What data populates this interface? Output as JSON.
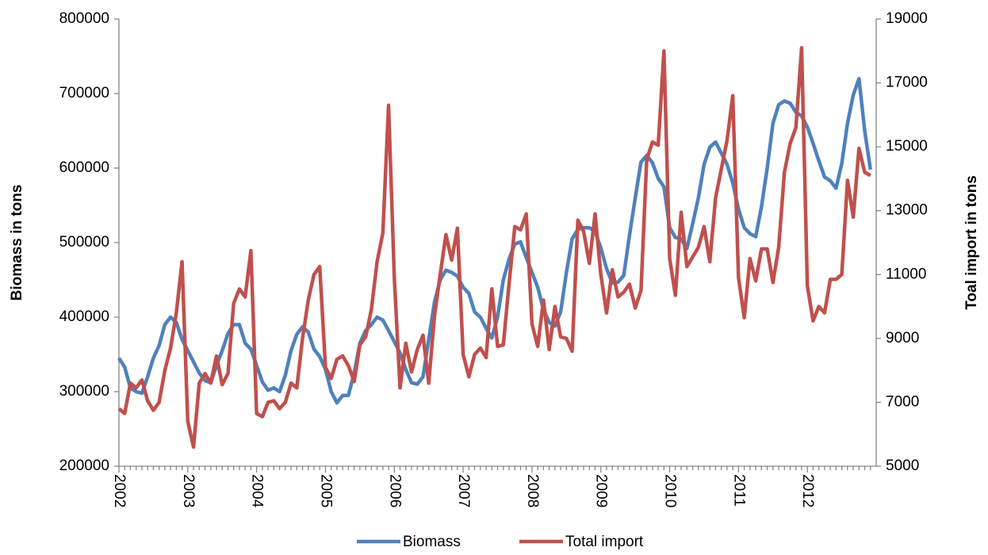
{
  "chart_data": {
    "type": "line",
    "y_label": "Biomass in tons",
    "y2_label": "Toal import in tons",
    "categories": [
      "2002",
      null,
      null,
      null,
      null,
      null,
      null,
      null,
      null,
      null,
      null,
      null,
      "2003",
      null,
      null,
      null,
      null,
      null,
      null,
      null,
      null,
      null,
      null,
      null,
      "2004",
      null,
      null,
      null,
      null,
      null,
      null,
      null,
      null,
      null,
      null,
      null,
      "2005",
      null,
      null,
      null,
      null,
      null,
      null,
      null,
      null,
      null,
      null,
      null,
      "2006",
      null,
      null,
      null,
      null,
      null,
      null,
      null,
      null,
      null,
      null,
      null,
      "2007",
      null,
      null,
      null,
      null,
      null,
      null,
      null,
      null,
      null,
      null,
      null,
      "2008",
      null,
      null,
      null,
      null,
      null,
      null,
      null,
      null,
      null,
      null,
      null,
      "2009",
      null,
      null,
      null,
      null,
      null,
      null,
      null,
      null,
      null,
      null,
      null,
      "2010",
      null,
      null,
      null,
      null,
      null,
      null,
      null,
      null,
      null,
      null,
      null,
      "2011",
      null,
      null,
      null,
      null,
      null,
      null,
      null,
      null,
      null,
      null,
      null,
      "2012",
      null,
      null,
      null,
      null,
      null,
      null,
      null,
      null,
      null,
      null,
      null
    ],
    "series": [
      {
        "name": "Biomass",
        "color": "#4f81bd",
        "axis": "y",
        "values": [
          345000,
          333000,
          305000,
          300000,
          298000,
          320000,
          345000,
          362000,
          390000,
          400000,
          393000,
          370000,
          355000,
          340000,
          325000,
          315000,
          312000,
          335000,
          355000,
          378000,
          390000,
          390000,
          365000,
          357000,
          335000,
          313000,
          302000,
          305000,
          300000,
          322000,
          355000,
          377000,
          387000,
          380000,
          357000,
          347000,
          330000,
          300000,
          285000,
          295000,
          295000,
          325000,
          365000,
          382000,
          390000,
          400000,
          396000,
          382000,
          367000,
          352000,
          330000,
          312000,
          310000,
          320000,
          370000,
          420000,
          450000,
          463000,
          460000,
          455000,
          440000,
          432000,
          407000,
          400000,
          385000,
          372000,
          400000,
          450000,
          478000,
          498000,
          501000,
          480000,
          460000,
          440000,
          410000,
          393000,
          388000,
          407000,
          460000,
          505000,
          518000,
          520000,
          520000,
          515000,
          493000,
          465000,
          446000,
          447000,
          456000,
          510000,
          560000,
          608000,
          617000,
          607000,
          586000,
          575000,
          520000,
          507000,
          505000,
          492000,
          525000,
          560000,
          605000,
          628000,
          635000,
          620000,
          605000,
          580000,
          545000,
          520000,
          512000,
          508000,
          548000,
          600000,
          660000,
          685000,
          690000,
          687000,
          675000,
          670000,
          655000,
          633000,
          610000,
          588000,
          583000,
          573000,
          606000,
          660000,
          698000,
          720000,
          650000,
          598000
        ]
      },
      {
        "name": "Total import",
        "color": "#c0504d",
        "axis": "y2",
        "values": [
          6800,
          6650,
          7600,
          7450,
          7700,
          7050,
          6750,
          7000,
          8000,
          8700,
          9800,
          11400,
          6400,
          5600,
          7600,
          7900,
          7600,
          8450,
          7550,
          7900,
          10100,
          10550,
          10300,
          11750,
          6650,
          6550,
          7000,
          7050,
          6800,
          7000,
          7600,
          7450,
          9000,
          10200,
          11000,
          11250,
          8100,
          7750,
          8350,
          8450,
          8150,
          7650,
          8800,
          9050,
          9900,
          11400,
          12300,
          16300,
          10900,
          7450,
          8850,
          7950,
          8650,
          9100,
          7600,
          9700,
          11000,
          12250,
          11450,
          12450,
          8500,
          7800,
          8500,
          8700,
          8400,
          10550,
          8750,
          8800,
          10700,
          12500,
          12400,
          12900,
          9450,
          8750,
          10200,
          8650,
          10000,
          9050,
          9000,
          8600,
          12700,
          12350,
          11350,
          12900,
          11000,
          9800,
          11150,
          10300,
          10450,
          10700,
          9950,
          10500,
          14600,
          15150,
          15050,
          18000,
          11500,
          10350,
          12950,
          11250,
          11550,
          11850,
          12500,
          11400,
          13400,
          14300,
          15200,
          16600,
          10900,
          9650,
          11500,
          10800,
          11800,
          11800,
          10750,
          11850,
          14200,
          15100,
          15600,
          18100,
          10650,
          9550,
          10000,
          9800,
          10850,
          10850,
          11000,
          13950,
          12800,
          14950,
          14200,
          14100
        ]
      }
    ],
    "ylim": [
      200000,
      800000
    ],
    "yticks": [
      200000,
      300000,
      400000,
      500000,
      600000,
      700000,
      800000
    ],
    "y2lim": [
      5000,
      19000
    ],
    "y2ticks": [
      5000,
      7000,
      9000,
      11000,
      13000,
      15000,
      17000,
      19000
    ],
    "grid": false,
    "legend": "bottom"
  }
}
